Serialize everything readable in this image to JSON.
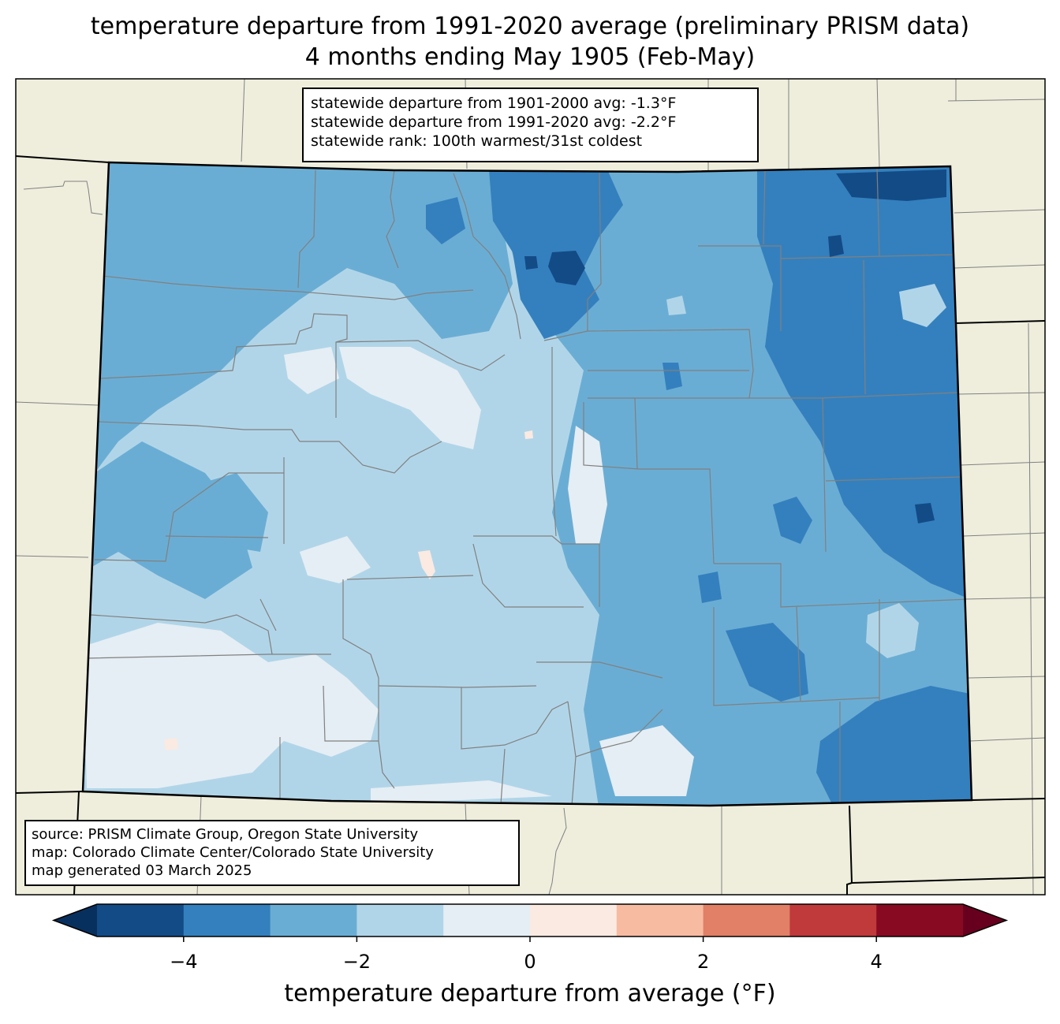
{
  "title": {
    "line1": "temperature departure from 1991-2020 average (preliminary PRISM data)",
    "line2": "4 months ending May 1905 (Feb-May)"
  },
  "stats": {
    "line1": "statewide departure from 1901-2000 avg: -1.3°F",
    "line2": "statewide departure from 1991-2020 avg: -2.2°F",
    "line3": "statewide rank: 100th warmest/31st coldest"
  },
  "source": {
    "line1": "source: PRISM Climate Group, Oregon State University",
    "line2": "map: Colorado Climate Center/Colorado State University",
    "line3": "map generated 03 March 2025"
  },
  "colorbar": {
    "label": "temperature departure from average (°F)",
    "min": -5,
    "max": 5,
    "step": 1,
    "ticks": [
      "−4",
      "−2",
      "0",
      "2",
      "4"
    ],
    "tick_values": [
      -4,
      -2,
      0,
      2,
      4
    ],
    "colors": [
      "#134b87",
      "#3480be",
      "#6aadd4",
      "#b1d5e8",
      "#e5eef4",
      "#faeae2",
      "#f7bba1",
      "#e27f67",
      "#c0393b",
      "#880a22"
    ],
    "under_color": "#08305f",
    "over_color": "#67001f"
  },
  "map_colors": {
    "background": "#efeedd",
    "county_lines": "#808080",
    "state_lines": "#000000"
  }
}
